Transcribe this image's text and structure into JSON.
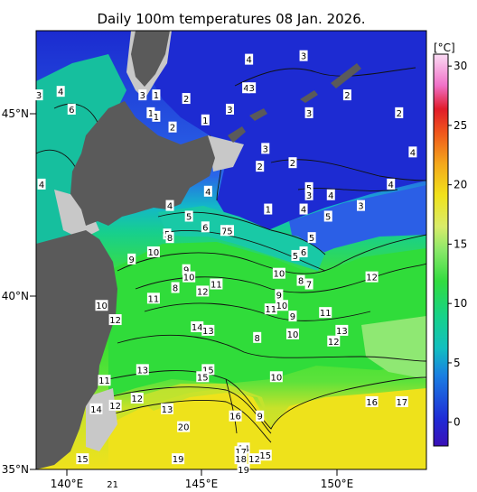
{
  "title": "Daily 100m temperatures 08 Jan. 2026.",
  "colorbar": {
    "unit": "[°C]",
    "ticks": [
      "30",
      "25",
      "20",
      "15",
      "10",
      "5",
      "0"
    ]
  },
  "axes": {
    "lon_ticks": [
      "140°E",
      "145°E",
      "150°E"
    ],
    "lat_ticks": [
      "45°N",
      "40°N",
      "35°N"
    ]
  },
  "colors": {
    "land": "#5a5a5a",
    "shelf": "#c8c8c8",
    "cold": "#1d2fd6",
    "cool": "#11c9a6",
    "mild": "#30e05a",
    "warm": "#e9e21a"
  },
  "chart_data": {
    "type": "heatmap",
    "title": "Daily 100m temperatures 08 Jan. 2026.",
    "xlim": [
      139,
      153.3
    ],
    "ylim": [
      35,
      47.3
    ],
    "colorbar_range": [
      -2,
      31
    ],
    "contour_labels": [
      {
        "lon": 146.8,
        "lat": 46.5,
        "t": "4"
      },
      {
        "lon": 148.8,
        "lat": 46.6,
        "t": "3"
      },
      {
        "lon": 139.1,
        "lat": 45.5,
        "t": "3"
      },
      {
        "lon": 139.9,
        "lat": 45.6,
        "t": "4"
      },
      {
        "lon": 140.3,
        "lat": 45.1,
        "t": "6"
      },
      {
        "lon": 142.9,
        "lat": 45.5,
        "t": "3"
      },
      {
        "lon": 143.4,
        "lat": 45.5,
        "t": "1"
      },
      {
        "lon": 143.2,
        "lat": 45.0,
        "t": "1"
      },
      {
        "lon": 143.4,
        "lat": 44.9,
        "t": "1"
      },
      {
        "lon": 144.5,
        "lat": 45.4,
        "t": "2"
      },
      {
        "lon": 146.7,
        "lat": 45.7,
        "t": "4"
      },
      {
        "lon": 146.9,
        "lat": 45.7,
        "t": "3"
      },
      {
        "lon": 146.1,
        "lat": 45.1,
        "t": "3"
      },
      {
        "lon": 145.2,
        "lat": 44.8,
        "t": "1"
      },
      {
        "lon": 144.0,
        "lat": 44.6,
        "t": "2"
      },
      {
        "lon": 150.4,
        "lat": 45.5,
        "t": "2"
      },
      {
        "lon": 149.0,
        "lat": 45.0,
        "t": "3"
      },
      {
        "lon": 152.3,
        "lat": 45.0,
        "t": "2"
      },
      {
        "lon": 147.4,
        "lat": 44.0,
        "t": "3"
      },
      {
        "lon": 148.4,
        "lat": 43.6,
        "t": "2"
      },
      {
        "lon": 147.2,
        "lat": 43.5,
        "t": "2"
      },
      {
        "lon": 152.8,
        "lat": 43.9,
        "t": "4"
      },
      {
        "lon": 139.2,
        "lat": 43.0,
        "t": "4"
      },
      {
        "lon": 145.3,
        "lat": 42.8,
        "t": "4"
      },
      {
        "lon": 149.0,
        "lat": 42.9,
        "t": "5"
      },
      {
        "lon": 149.0,
        "lat": 42.7,
        "t": "3"
      },
      {
        "lon": 149.8,
        "lat": 42.7,
        "t": "4"
      },
      {
        "lon": 152.0,
        "lat": 43.0,
        "t": "4"
      },
      {
        "lon": 150.9,
        "lat": 42.4,
        "t": "3"
      },
      {
        "lon": 143.9,
        "lat": 42.4,
        "t": "4"
      },
      {
        "lon": 147.5,
        "lat": 42.3,
        "t": "1"
      },
      {
        "lon": 148.8,
        "lat": 42.3,
        "t": "4"
      },
      {
        "lon": 149.7,
        "lat": 42.1,
        "t": "5"
      },
      {
        "lon": 144.6,
        "lat": 42.1,
        "t": "5"
      },
      {
        "lon": 145.2,
        "lat": 41.8,
        "t": "6"
      },
      {
        "lon": 145.9,
        "lat": 41.7,
        "t": "7"
      },
      {
        "lon": 146.1,
        "lat": 41.7,
        "t": "5"
      },
      {
        "lon": 143.8,
        "lat": 41.6,
        "t": "5"
      },
      {
        "lon": 143.9,
        "lat": 41.5,
        "t": "8"
      },
      {
        "lon": 149.1,
        "lat": 41.5,
        "t": "5"
      },
      {
        "lon": 148.5,
        "lat": 41.0,
        "t": "5"
      },
      {
        "lon": 148.8,
        "lat": 41.1,
        "t": "6"
      },
      {
        "lon": 143.3,
        "lat": 41.1,
        "t": "10"
      },
      {
        "lon": 142.5,
        "lat": 40.9,
        "t": "9"
      },
      {
        "lon": 144.5,
        "lat": 40.6,
        "t": "9"
      },
      {
        "lon": 144.6,
        "lat": 40.4,
        "t": "10"
      },
      {
        "lon": 147.9,
        "lat": 40.5,
        "t": "10"
      },
      {
        "lon": 148.7,
        "lat": 40.3,
        "t": "8"
      },
      {
        "lon": 149.0,
        "lat": 40.2,
        "t": "7"
      },
      {
        "lon": 151.3,
        "lat": 40.4,
        "t": "12"
      },
      {
        "lon": 144.1,
        "lat": 40.1,
        "t": "8"
      },
      {
        "lon": 145.1,
        "lat": 40.0,
        "t": "12"
      },
      {
        "lon": 145.6,
        "lat": 40.2,
        "t": "11"
      },
      {
        "lon": 147.9,
        "lat": 39.9,
        "t": "9"
      },
      {
        "lon": 143.3,
        "lat": 39.8,
        "t": "11"
      },
      {
        "lon": 141.4,
        "lat": 39.6,
        "t": "10"
      },
      {
        "lon": 147.6,
        "lat": 39.5,
        "t": "11"
      },
      {
        "lon": 148.0,
        "lat": 39.6,
        "t": "10"
      },
      {
        "lon": 148.4,
        "lat": 39.3,
        "t": "9"
      },
      {
        "lon": 149.6,
        "lat": 39.4,
        "t": "11"
      },
      {
        "lon": 141.9,
        "lat": 39.2,
        "t": "12"
      },
      {
        "lon": 144.9,
        "lat": 39.0,
        "t": "14"
      },
      {
        "lon": 145.3,
        "lat": 38.9,
        "t": "13"
      },
      {
        "lon": 147.1,
        "lat": 38.7,
        "t": "8"
      },
      {
        "lon": 148.4,
        "lat": 38.8,
        "t": "10"
      },
      {
        "lon": 149.9,
        "lat": 38.6,
        "t": "12"
      },
      {
        "lon": 150.2,
        "lat": 38.9,
        "t": "13"
      },
      {
        "lon": 142.9,
        "lat": 37.8,
        "t": "13"
      },
      {
        "lon": 145.3,
        "lat": 37.8,
        "t": "15"
      },
      {
        "lon": 145.1,
        "lat": 37.6,
        "t": "15"
      },
      {
        "lon": 147.8,
        "lat": 37.6,
        "t": "10"
      },
      {
        "lon": 141.5,
        "lat": 37.5,
        "t": "11"
      },
      {
        "lon": 151.3,
        "lat": 36.9,
        "t": "16"
      },
      {
        "lon": 152.4,
        "lat": 36.9,
        "t": "17"
      },
      {
        "lon": 141.9,
        "lat": 36.8,
        "t": "12"
      },
      {
        "lon": 142.7,
        "lat": 37.0,
        "t": "12"
      },
      {
        "lon": 141.2,
        "lat": 36.7,
        "t": "14"
      },
      {
        "lon": 143.8,
        "lat": 36.7,
        "t": "13"
      },
      {
        "lon": 146.3,
        "lat": 36.5,
        "t": "16"
      },
      {
        "lon": 147.2,
        "lat": 36.5,
        "t": "9"
      },
      {
        "lon": 144.4,
        "lat": 36.2,
        "t": "20"
      },
      {
        "lon": 146.6,
        "lat": 35.6,
        "t": "14"
      },
      {
        "lon": 146.5,
        "lat": 35.5,
        "t": "17"
      },
      {
        "lon": 146.5,
        "lat": 35.3,
        "t": "18"
      },
      {
        "lon": 147.0,
        "lat": 35.3,
        "t": "12"
      },
      {
        "lon": 147.4,
        "lat": 35.4,
        "t": "15"
      },
      {
        "lon": 140.7,
        "lat": 35.3,
        "t": "15"
      },
      {
        "lon": 144.2,
        "lat": 35.3,
        "t": "19"
      },
      {
        "lon": 146.6,
        "lat": 35.0,
        "t": "19"
      },
      {
        "lon": 141.8,
        "lat": 34.6,
        "t": "21"
      },
      {
        "lon": 146.8,
        "lat": 34.0,
        "t": "19"
      }
    ]
  }
}
